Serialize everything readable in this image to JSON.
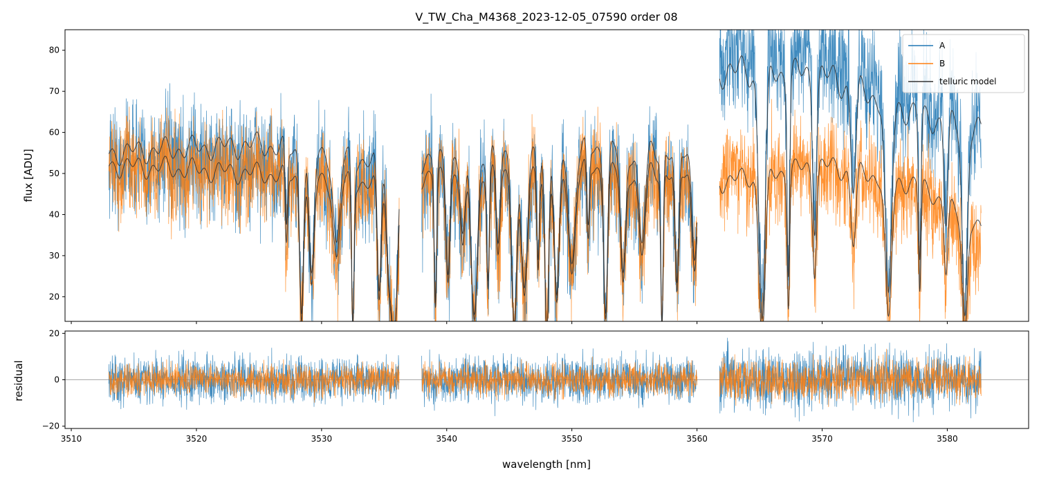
{
  "chart_data": {
    "type": "line",
    "title": "V_TW_Cha_M4368_2023-12-05_07590  order 08",
    "xlabel": "wavelength [nm]",
    "colors": {
      "A": "#1f77b4",
      "B": "#ff7f0e",
      "telluric": "#333333"
    },
    "x_range": [
      3509.5,
      3586.5
    ],
    "x_ticks": [
      3510,
      3520,
      3530,
      3540,
      3550,
      3560,
      3570,
      3580
    ],
    "segments": [
      [
        3513.0,
        3536.2
      ],
      [
        3538.0,
        3560.0
      ],
      [
        3561.8,
        3582.7
      ]
    ],
    "top_panel": {
      "ylabel": "flux [ADU]",
      "ylim": [
        14,
        85
      ],
      "yticks": [
        20,
        30,
        40,
        50,
        60,
        70,
        80
      ],
      "series": [
        {
          "name": "A",
          "continuum_knots": [
            [
              3513,
              53
            ],
            [
              3525,
              52
            ],
            [
              3536,
              47
            ],
            [
              3538,
              49
            ],
            [
              3550,
              50
            ],
            [
              3560,
              50
            ],
            [
              3562,
              80
            ],
            [
              3570,
              78
            ],
            [
              3578,
              68
            ],
            [
              3582.7,
              60
            ]
          ],
          "noise": 7
        },
        {
          "name": "B",
          "continuum_knots": [
            [
              3513,
              52
            ],
            [
              3525,
              50
            ],
            [
              3536,
              45
            ],
            [
              3538,
              48
            ],
            [
              3550,
              50
            ],
            [
              3560,
              49
            ],
            [
              3562,
              49
            ],
            [
              3570,
              51
            ],
            [
              3578,
              46
            ],
            [
              3582.7,
              32
            ]
          ],
          "noise": 6
        }
      ],
      "model_levels": [
        {
          "knots": [
            [
              3513,
              55
            ],
            [
              3525,
              57
            ],
            [
              3536,
              52
            ],
            [
              3538,
              53
            ],
            [
              3550,
              56
            ],
            [
              3560,
              55
            ],
            [
              3562,
              75
            ],
            [
              3570,
              74
            ],
            [
              3578,
              64
            ],
            [
              3582.7,
              60
            ]
          ]
        },
        {
          "knots": [
            [
              3513,
              52
            ],
            [
              3525,
              50
            ],
            [
              3536,
              47
            ],
            [
              3538,
              49
            ],
            [
              3550,
              51
            ],
            [
              3560,
              50
            ],
            [
              3562,
              48
            ],
            [
              3570,
              52
            ],
            [
              3578,
              47
            ],
            [
              3582.7,
              36
            ]
          ]
        }
      ],
      "absorption_lines": [
        3527.2,
        3528.4,
        3529.2,
        3531.2,
        3532.5,
        3534.6,
        3535.4,
        3535.8,
        3539.1,
        3540.1,
        3541.3,
        3542.2,
        3543.3,
        3544.1,
        3545.4,
        3546.2,
        3547.3,
        3548.0,
        3548.8,
        3550.0,
        3551.3,
        3552.7,
        3554.1,
        3555.6,
        3557.2,
        3558.4,
        3559.8,
        3565.2,
        3567.3,
        3569.4,
        3572.5,
        3575.3,
        3577.8,
        3579.9,
        3581.4
      ]
    },
    "bottom_panel": {
      "ylabel": "residual",
      "ylim": [
        -21,
        21
      ],
      "yticks": [
        -20,
        0,
        20
      ],
      "noise": {
        "A": 10,
        "B": 7
      }
    },
    "legend": {
      "position": "top-right",
      "entries": [
        "A",
        "B",
        "telluric model"
      ]
    }
  }
}
